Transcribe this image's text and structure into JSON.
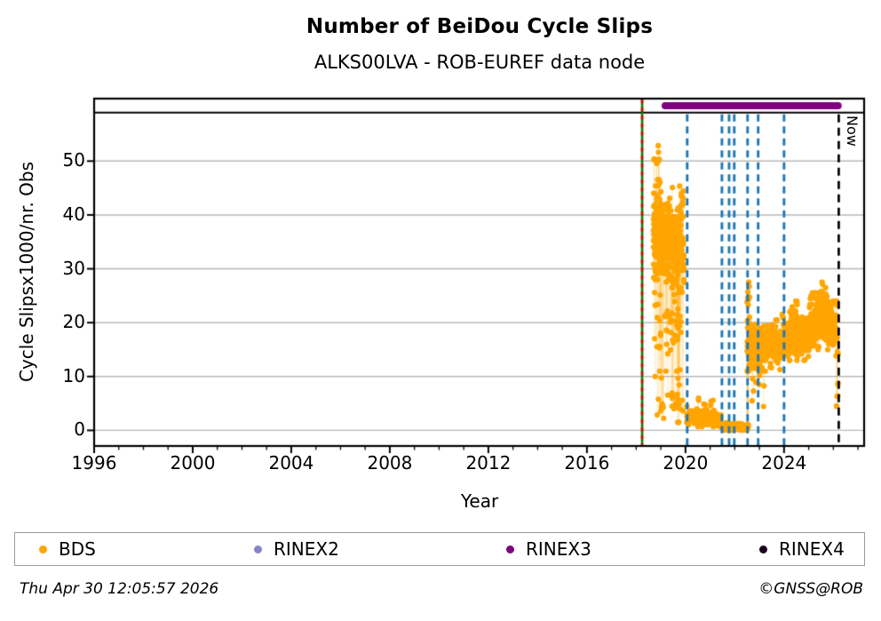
{
  "header": {
    "title": "Number of BeiDou Cycle Slips",
    "subtitle": "ALKS00LVA - ROB-EUREF data node"
  },
  "footer": {
    "timestamp": "Thu Apr 30 12:05:57 2026",
    "credit": "©GNSS@ROB"
  },
  "chart_data": {
    "type": "scatter",
    "title": "Number of BeiDou Cycle Slips",
    "subtitle": "ALKS00LVA - ROB-EUREF data node",
    "xlabel": "Year",
    "ylabel": "Cycle Slipsx1000/nr. Obs",
    "xlim": [
      1996,
      2027.25
    ],
    "ylim": [
      -2.9,
      61.6
    ],
    "xticks_major": [
      1996,
      2000,
      2004,
      2008,
      2012,
      2016,
      2020,
      2024
    ],
    "xtick_minor_step": 1,
    "yticks": [
      0,
      10,
      20,
      30,
      40,
      50
    ],
    "grid": "horizontal",
    "grid_color": "#b8b8b8",
    "series_color": "#FFA500",
    "connector_color": "rgba(255,165,0,0.2)",
    "strip_separator_value": 59.0,
    "rinex3_bar": {
      "x0": 2019.03,
      "x1": 2026.34,
      "value": 60.3,
      "color": "#800080"
    },
    "event_lines": {
      "data_start_line": {
        "x": 2018.24,
        "colors": [
          "#008000",
          "#dd0000"
        ],
        "style": "green solid with red dashes"
      },
      "format_change_lines": {
        "x": [
          2020.07,
          2021.48,
          2021.77,
          2021.98,
          2022.52,
          2022.95,
          2024.0
        ],
        "color": "#1f77b4",
        "style": "dashed"
      },
      "now_line": {
        "x": 2026.22,
        "label": "Now",
        "color": "#000000",
        "style": "dashed"
      }
    },
    "clusters": [
      {
        "x0": 2018.7,
        "x1": 2019.95,
        "n": 430,
        "m0": 36.5,
        "m1": 32.5,
        "sd": 3.4,
        "lo": 24,
        "hi": 47
      },
      {
        "x0": 2018.7,
        "x1": 2019.02,
        "n": 16,
        "m0": 51,
        "m1": 48,
        "sd": 3.5,
        "lo": 43,
        "hi": 57.5
      },
      {
        "x0": 2019.76,
        "x1": 2019.93,
        "n": 14,
        "m0": 41,
        "m1": 43,
        "sd": 2.2,
        "lo": 37,
        "hi": 46
      },
      {
        "x0": 2018.74,
        "x1": 2019.9,
        "n": 55,
        "m0": 21,
        "m1": 19,
        "sd": 4.5,
        "lo": 11,
        "hi": 28
      },
      {
        "x0": 2018.76,
        "x1": 2019.95,
        "n": 30,
        "m0": 5.5,
        "m1": 4.5,
        "sd": 2.2,
        "lo": 1.5,
        "hi": 10
      },
      {
        "x0": 2020.05,
        "x1": 2021.45,
        "n": 180,
        "m0": 2.5,
        "m1": 2.0,
        "sd": 0.75,
        "lo": 0.7,
        "hi": 4.8
      },
      {
        "x0": 2020.45,
        "x1": 2021.15,
        "n": 7,
        "m0": 5.2,
        "m1": 5.0,
        "sd": 0.6,
        "lo": 4.2,
        "hi": 6.3
      },
      {
        "x0": 2021.45,
        "x1": 2022.55,
        "n": 140,
        "m0": 0.65,
        "m1": 0.55,
        "sd": 0.35,
        "lo": 0.05,
        "hi": 1.7
      },
      {
        "x0": 2022.5,
        "x1": 2022.6,
        "n": 32,
        "m0": 19,
        "m1": 19,
        "sd": 5.5,
        "lo": 11,
        "hi": 27.5
      },
      {
        "x0": 2022.58,
        "x1": 2023.05,
        "n": 95,
        "m0": 16.5,
        "m1": 15.2,
        "sd": 1.9,
        "lo": 11.5,
        "hi": 21
      },
      {
        "x0": 2022.7,
        "x1": 2023.4,
        "n": 10,
        "m0": 8.5,
        "m1": 8.0,
        "sd": 2.0,
        "lo": 4.2,
        "hi": 11
      },
      {
        "x0": 2023.0,
        "x1": 2023.9,
        "n": 230,
        "m0": 15.6,
        "m1": 16.2,
        "sd": 1.7,
        "lo": 11,
        "hi": 20.5
      },
      {
        "x0": 2023.9,
        "x1": 2025.0,
        "n": 270,
        "m0": 17.2,
        "m1": 17.8,
        "sd": 1.9,
        "lo": 13,
        "hi": 23
      },
      {
        "x0": 2024.28,
        "x1": 2024.55,
        "n": 45,
        "m0": 21,
        "m1": 21.5,
        "sd": 1.3,
        "lo": 18.5,
        "hi": 24
      },
      {
        "x0": 2025.0,
        "x1": 2025.75,
        "n": 210,
        "m0": 19.5,
        "m1": 20.5,
        "sd": 2.1,
        "lo": 15,
        "hi": 26
      },
      {
        "x0": 2025.42,
        "x1": 2025.72,
        "n": 28,
        "m0": 24.5,
        "m1": 24.5,
        "sd": 1.4,
        "lo": 22,
        "hi": 27.5
      },
      {
        "x0": 2025.75,
        "x1": 2026.1,
        "n": 130,
        "m0": 20,
        "m1": 19,
        "sd": 1.9,
        "lo": 13.5,
        "hi": 24.5
      },
      {
        "x0": 2026.1,
        "x1": 2026.2,
        "n": 17,
        "m0": 15,
        "m1": 15,
        "sd": 7.5,
        "lo": 4.5,
        "hi": 28
      }
    ],
    "legend": {
      "items": [
        {
          "label": "BDS",
          "color": "#FFA500"
        },
        {
          "label": "RINEX2",
          "color": "#8484c8"
        },
        {
          "label": "RINEX3",
          "color": "#800080"
        },
        {
          "label": "RINEX4",
          "color": "#1c0220"
        }
      ]
    },
    "now_label": "Now"
  }
}
